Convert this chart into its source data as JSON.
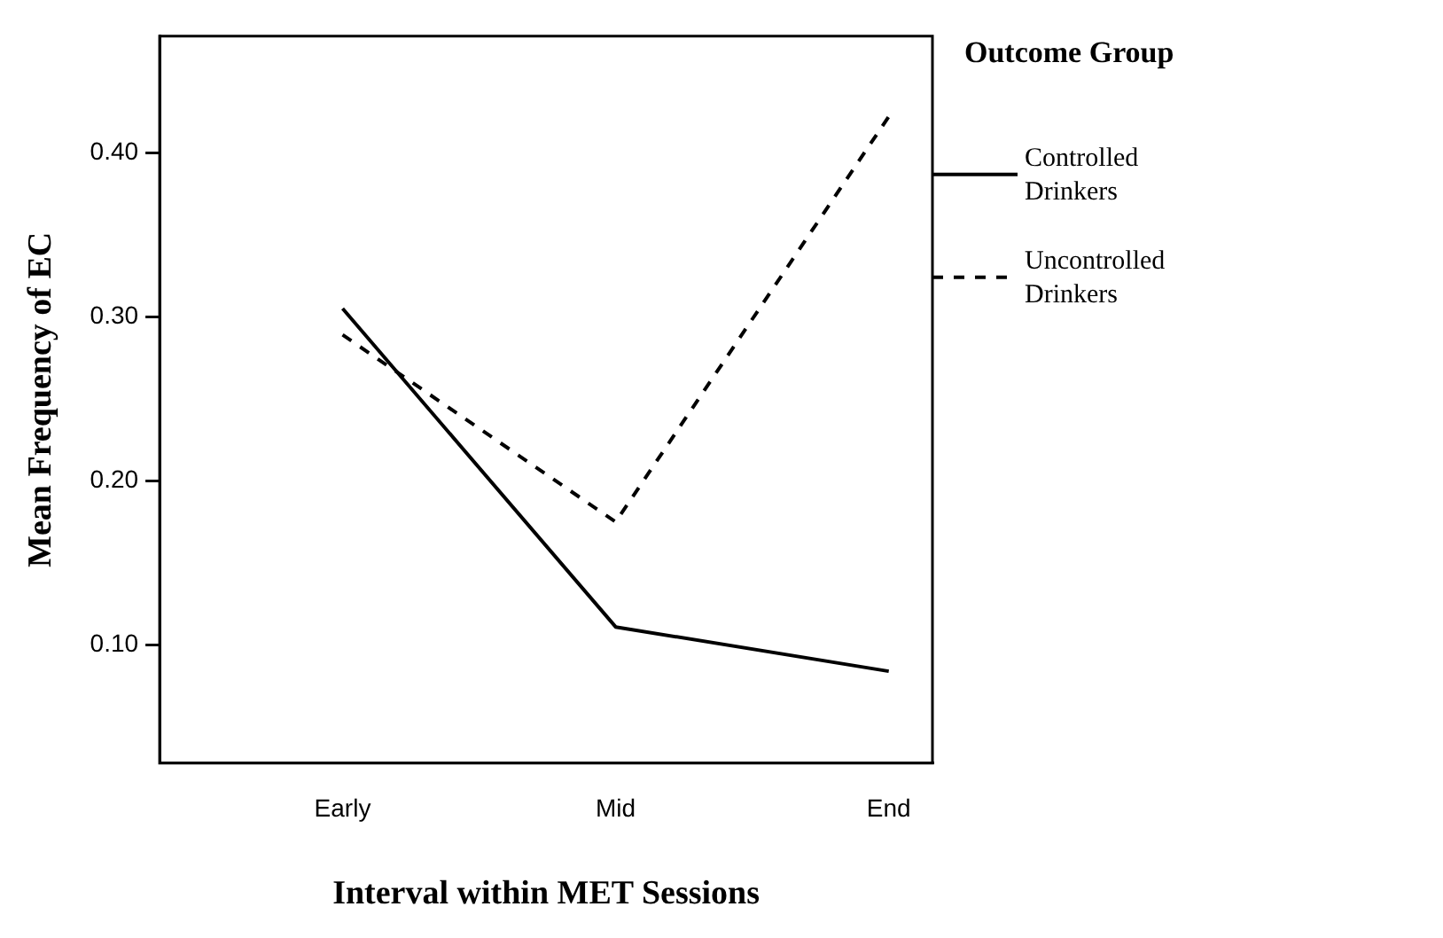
{
  "chart_data": {
    "type": "line",
    "xlabel": "Interval within MET Sessions",
    "ylabel": "Mean Frequency of EC",
    "legend_title": "Outcome Group",
    "categories": [
      "Early",
      "Mid",
      "End"
    ],
    "series": [
      {
        "name": "Controlled Drinkers",
        "color": "#000000",
        "line_style": "solid",
        "values": [
          0.305,
          0.111,
          0.084
        ]
      },
      {
        "name": "Uncontrolled Drinkers",
        "color": "#000000",
        "line_style": "dashed",
        "values": [
          0.289,
          0.175,
          0.422
        ]
      }
    ],
    "ylim": [
      0.028,
      0.471
    ],
    "yticks": [
      {
        "value": 0.1,
        "label": "0.10"
      },
      {
        "value": 0.2,
        "label": "0.20"
      },
      {
        "value": 0.3,
        "label": "0.30"
      },
      {
        "value": 0.4,
        "label": "0.40"
      }
    ],
    "grid": false,
    "legend": "top right",
    "marker": "none"
  }
}
